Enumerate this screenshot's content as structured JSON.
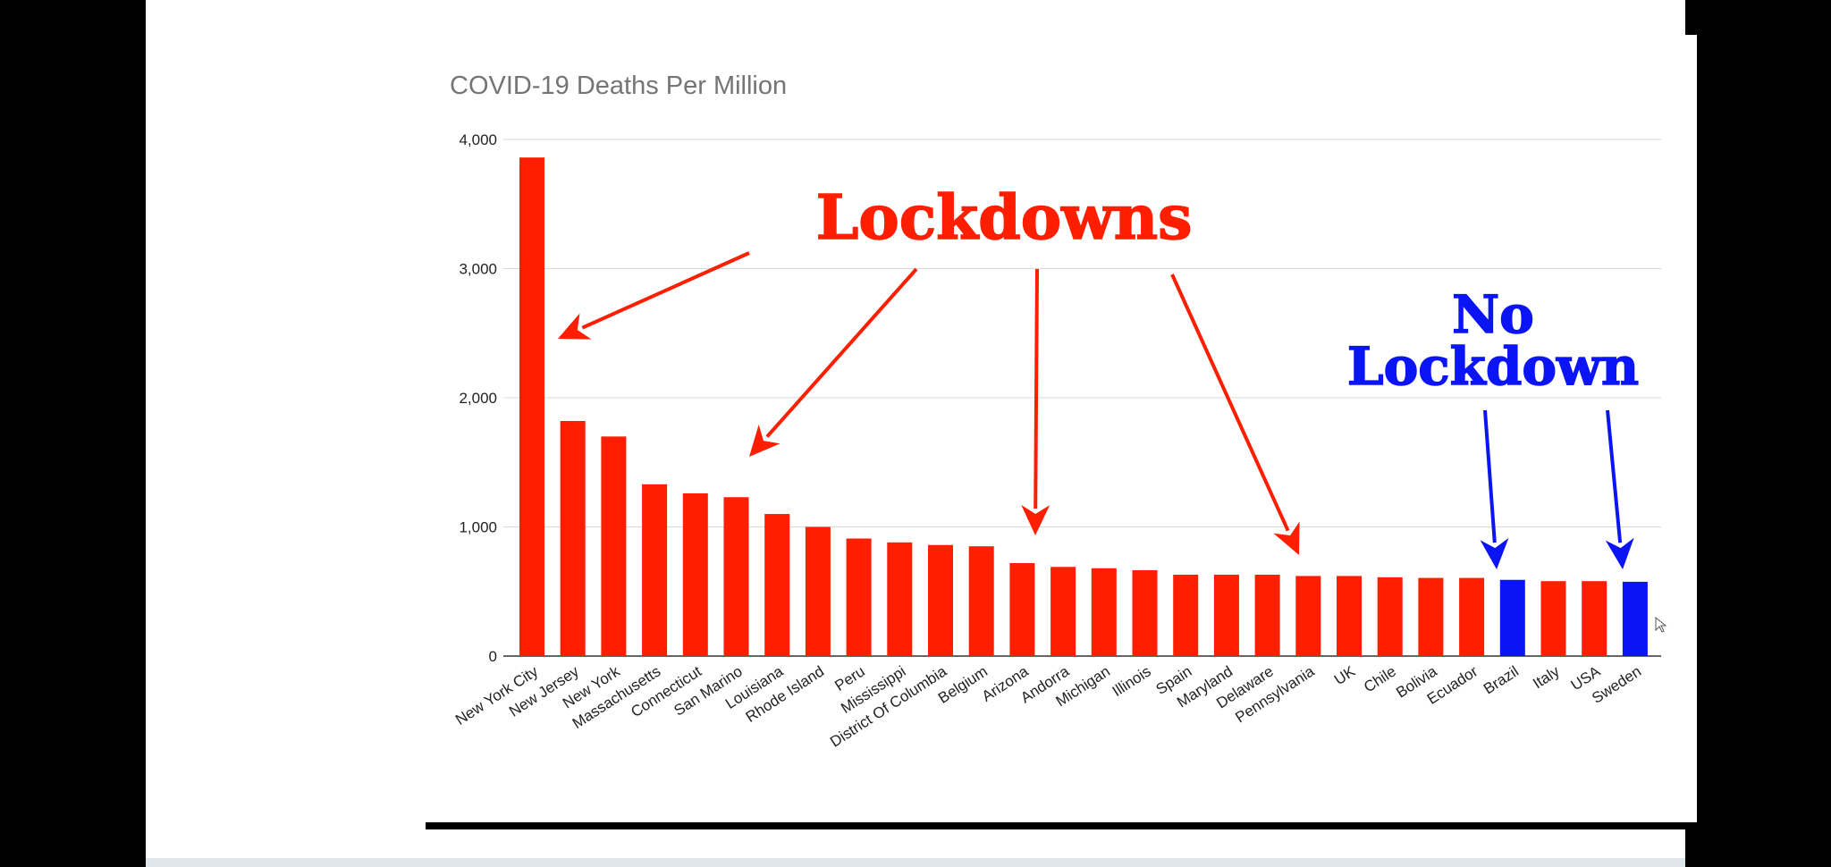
{
  "chart_data": {
    "type": "bar",
    "title": "COVID-19 Deaths Per Million",
    "xlabel": "",
    "ylabel": "",
    "ylim": [
      0,
      4000
    ],
    "yticks": [
      0,
      1000,
      2000,
      3000,
      4000
    ],
    "ytick_labels": [
      "0",
      "1,000",
      "2,000",
      "3,000",
      "4,000"
    ],
    "grid": true,
    "categories": [
      "New York City",
      "New Jersey",
      "New York",
      "Massachusetts",
      "Connecticut",
      "San Marino",
      "Louisiana",
      "Rhode Island",
      "Peru",
      "Mississippi",
      "District Of Columbia",
      "Belgium",
      "Arizona",
      "Andorra",
      "Michigan",
      "Illinois",
      "Spain",
      "Maryland",
      "Delaware",
      "Pennsylvania",
      "UK",
      "Chile",
      "Bolivia",
      "Ecuador",
      "Brazil",
      "Italy",
      "USA",
      "Sweden"
    ],
    "values": [
      3860,
      1820,
      1700,
      1330,
      1260,
      1230,
      1100,
      1000,
      910,
      880,
      860,
      850,
      720,
      690,
      680,
      665,
      630,
      630,
      630,
      620,
      620,
      610,
      605,
      605,
      590,
      580,
      580,
      575
    ],
    "bar_colors": [
      "#ff1e00",
      "#ff1e00",
      "#ff1e00",
      "#ff1e00",
      "#ff1e00",
      "#ff1e00",
      "#ff1e00",
      "#ff1e00",
      "#ff1e00",
      "#ff1e00",
      "#ff1e00",
      "#ff1e00",
      "#ff1e00",
      "#ff1e00",
      "#ff1e00",
      "#ff1e00",
      "#ff1e00",
      "#ff1e00",
      "#ff1e00",
      "#ff1e00",
      "#ff1e00",
      "#ff1e00",
      "#ff1e00",
      "#ff1e00",
      "#0a14f5",
      "#ff1e00",
      "#ff1e00",
      "#0a14f5"
    ],
    "annotations": [
      {
        "text": "Lockdowns",
        "color": "#ff1e00"
      },
      {
        "text": "No",
        "color": "#0a14f5"
      },
      {
        "text": "Lockdown",
        "color": "#0a14f5"
      }
    ]
  },
  "colors": {
    "lockdown": "#ff1e00",
    "no_lockdown": "#0a14f5",
    "grid": "#d9d9d9",
    "title": "#757575"
  }
}
